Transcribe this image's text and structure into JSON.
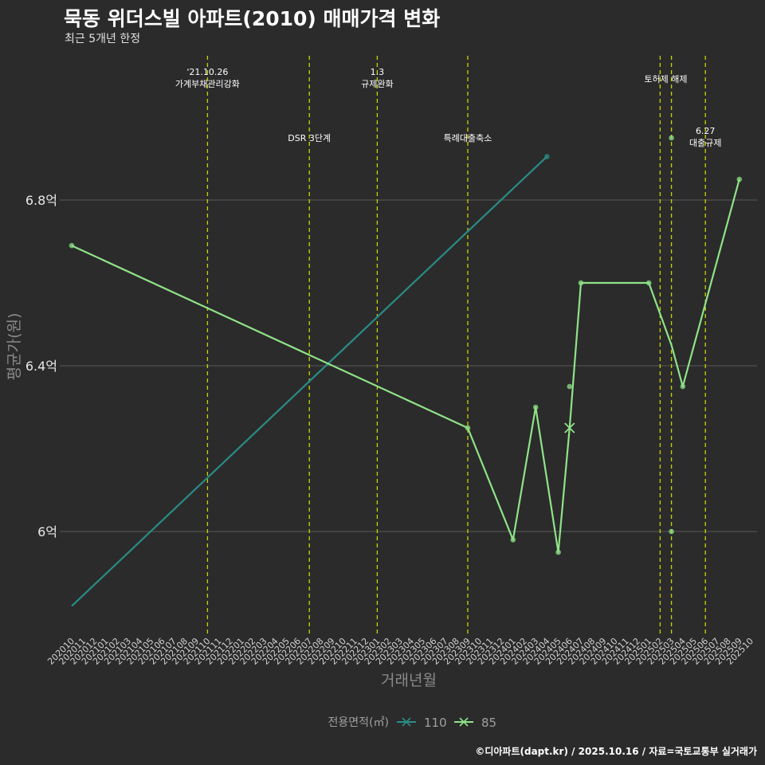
{
  "title": "묵동 위더스빌 아파트(2010) 매매가격 변화",
  "subtitle": "최근 5개년 한정",
  "caption": "©디아파트(dapt.kr) / 2025.10.16 / 자료=국토교통부 실거래가",
  "colors": {
    "background": "#2b2b2b",
    "s110": "#2a8c86",
    "s85": "#8fe388",
    "event": "#c8d400",
    "grid": "#5a5a5a",
    "text": "#ffffff"
  },
  "chart_data": {
    "type": "line",
    "title": "묵동 위더스빌 아파트(2010) 매매가격 변화",
    "xlabel": "거래년월",
    "ylabel": "평균가(원)",
    "ylim": [
      5.75,
      7.05
    ],
    "yticks": [
      {
        "value": 6.0,
        "label": "6억"
      },
      {
        "value": 6.4,
        "label": "6.4억"
      },
      {
        "value": 6.8,
        "label": "6.8억"
      }
    ],
    "categories": [
      "202010",
      "202011",
      "202012",
      "202101",
      "202102",
      "202103",
      "202104",
      "202105",
      "202106",
      "202107",
      "202108",
      "202109",
      "202110",
      "202111",
      "202112",
      "202201",
      "202202",
      "202203",
      "202204",
      "202205",
      "202206",
      "202207",
      "202208",
      "202209",
      "202210",
      "202211",
      "202212",
      "202301",
      "202302",
      "202303",
      "202304",
      "202305",
      "202306",
      "202307",
      "202308",
      "202309",
      "202310",
      "202311",
      "202312",
      "202401",
      "202402",
      "202403",
      "202404",
      "202405",
      "202406",
      "202407",
      "202408",
      "202409",
      "202410",
      "202411",
      "202412",
      "202501",
      "202502",
      "202503",
      "202504",
      "202505",
      "202506",
      "202507",
      "202508",
      "202509",
      "202510"
    ],
    "legend": {
      "title": "전용면적(㎡)",
      "position": "bottom"
    },
    "series": [
      {
        "name": "110",
        "color": "#2a8c86",
        "points": [
          {
            "x": "202010",
            "y": 5.82
          },
          {
            "x": "202404",
            "y": 6.905
          }
        ],
        "dots": [
          {
            "x": "202404",
            "y": 6.905
          }
        ]
      },
      {
        "name": "85",
        "color": "#8fe388",
        "points": [
          {
            "x": "202010",
            "y": 6.69
          },
          {
            "x": "202309",
            "y": 6.25
          },
          {
            "x": "202401",
            "y": 5.98
          },
          {
            "x": "202403",
            "y": 6.3
          },
          {
            "x": "202405",
            "y": 5.95
          },
          {
            "x": "202406",
            "y": 6.25
          },
          {
            "x": "202407",
            "y": 6.6
          },
          {
            "x": "202501",
            "y": 6.6
          },
          {
            "x": "202503",
            "y": 6.45
          },
          {
            "x": "202504",
            "y": 6.35
          },
          {
            "x": "202509",
            "y": 6.85
          }
        ],
        "dots": [
          {
            "x": "202010",
            "y": 6.69
          },
          {
            "x": "202309",
            "y": 6.25
          },
          {
            "x": "202401",
            "y": 5.98
          },
          {
            "x": "202403",
            "y": 6.3
          },
          {
            "x": "202405",
            "y": 5.95
          },
          {
            "x": "202406",
            "y": 6.35
          },
          {
            "x": "202407",
            "y": 6.6
          },
          {
            "x": "202501",
            "y": 6.6
          },
          {
            "x": "202503",
            "y": 6.95
          },
          {
            "x": "202503",
            "y": 6.0
          },
          {
            "x": "202504",
            "y": 6.35
          },
          {
            "x": "202509",
            "y": 6.85
          }
        ],
        "cross": {
          "x": "202406",
          "y": 6.25
        }
      }
    ],
    "events": [
      {
        "x": "202110",
        "lines": [
          "'21.10.26",
          "가계부채관리강화"
        ],
        "row": 1
      },
      {
        "x": "202207",
        "lines": [
          "DSR 3단계"
        ],
        "row": 2
      },
      {
        "x": "202301",
        "lines": [
          "1.3",
          "규제완화"
        ],
        "row": 1
      },
      {
        "x": "202309",
        "lines": [
          "특례대출축소"
        ],
        "row": 2
      },
      {
        "x": "202502",
        "lines": [
          "토허제 해제"
        ],
        "row": 1,
        "offset": 0.5
      },
      {
        "x": "202503",
        "lines": [],
        "row": 1
      },
      {
        "x": "202506",
        "lines": [
          "6.27",
          "대출규제"
        ],
        "row": 2
      }
    ]
  }
}
